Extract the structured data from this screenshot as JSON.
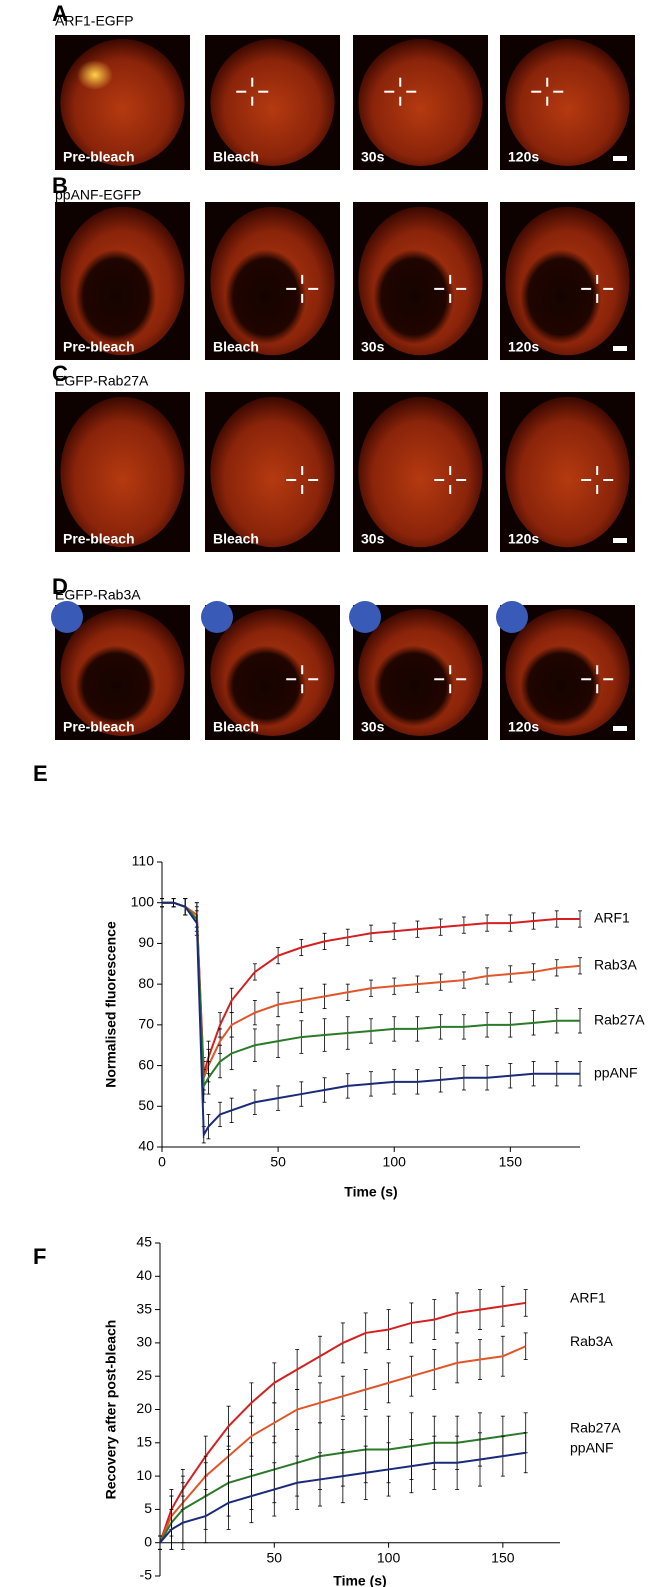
{
  "panels": [
    {
      "letter": "A",
      "title": "ARF1-EGFP",
      "captions": [
        "Pre-bleach",
        "Bleach",
        "30s",
        "120s"
      ]
    },
    {
      "letter": "B",
      "title": "ppANF-EGFP",
      "captions": [
        "Pre-bleach",
        "Bleach",
        "30s",
        "120s"
      ]
    },
    {
      "letter": "C",
      "title": "EGFP-Rab27A",
      "captions": [
        "Pre-bleach",
        "Bleach",
        "30s",
        "120s"
      ]
    },
    {
      "letter": "D",
      "title": "EGFP-Rab3A",
      "captions": [
        "Pre-bleach",
        "Bleach",
        "30s",
        "120s"
      ]
    }
  ],
  "chart_data": [
    {
      "type": "line",
      "panel": "E",
      "xlabel": "Time (s)",
      "ylabel": "Normalised fluorescence",
      "x": [
        0,
        5,
        10,
        15,
        18,
        20,
        25,
        30,
        40,
        50,
        60,
        70,
        80,
        90,
        100,
        110,
        120,
        130,
        140,
        150,
        160,
        170,
        180
      ],
      "xlim": [
        0,
        180
      ],
      "xticks": [
        0,
        50,
        100,
        150
      ],
      "ylim": [
        40,
        110
      ],
      "yticks": [
        40,
        50,
        60,
        70,
        80,
        90,
        100,
        110
      ],
      "series": [
        {
          "name": "ARF1",
          "color": "#d42020",
          "values": [
            100,
            100,
            99,
            97,
            58,
            62,
            70,
            76,
            83,
            87,
            89,
            90.5,
            91.5,
            92.5,
            93,
            93.5,
            94,
            94.5,
            95,
            95,
            95.5,
            96,
            96
          ],
          "errors": [
            1,
            1,
            2,
            3,
            4,
            4,
            3,
            3,
            2,
            2,
            2,
            2,
            2,
            2,
            2,
            2,
            2,
            2,
            2,
            2,
            2,
            2,
            2
          ]
        },
        {
          "name": "Rab3A",
          "color": "#e0562a",
          "values": [
            100,
            100,
            99,
            97,
            57,
            60,
            66,
            70,
            73,
            75,
            76,
            77,
            78,
            79,
            79.5,
            80,
            80.5,
            81,
            82,
            82.5,
            83,
            84,
            84.5
          ],
          "errors": [
            1,
            1,
            2,
            3,
            4,
            4,
            3,
            3,
            3,
            3,
            3,
            3,
            2,
            2,
            2,
            2,
            2,
            2,
            2,
            2,
            2,
            2,
            2
          ]
        },
        {
          "name": "Rab27A",
          "color": "#2a7a2a",
          "values": [
            100,
            100,
            99,
            96,
            55,
            57,
            61,
            63,
            65,
            66,
            67,
            67.5,
            68,
            68.5,
            69,
            69,
            69.5,
            69.5,
            70,
            70,
            70.5,
            71,
            71
          ],
          "errors": [
            1,
            1,
            2,
            3,
            4,
            4,
            4,
            4,
            4,
            4,
            4,
            4,
            4,
            3,
            3,
            3,
            3,
            3,
            3,
            3,
            3,
            3,
            3
          ]
        },
        {
          "name": "ppANF",
          "color": "#1a2a7a",
          "values": [
            100,
            100,
            99,
            95,
            43,
            45,
            48,
            49,
            51,
            52,
            53,
            54,
            55,
            55.5,
            56,
            56,
            56.5,
            57,
            57,
            57.5,
            58,
            58,
            58
          ],
          "errors": [
            1,
            1,
            2,
            3,
            2,
            3,
            3,
            3,
            3,
            3,
            3,
            3,
            3,
            3,
            3,
            3,
            3,
            3,
            3,
            3,
            3,
            3,
            3
          ]
        }
      ]
    },
    {
      "type": "line",
      "panel": "F",
      "xlabel": "Time (s)",
      "ylabel": "Recovery after post-bleach",
      "x": [
        0,
        5,
        10,
        20,
        30,
        40,
        50,
        60,
        70,
        80,
        90,
        100,
        110,
        120,
        130,
        140,
        150,
        160
      ],
      "xlim": [
        0,
        175
      ],
      "xticks": [
        50,
        100,
        150
      ],
      "ylim": [
        -5,
        45
      ],
      "yticks": [
        -5,
        0,
        5,
        10,
        15,
        20,
        25,
        30,
        35,
        40,
        45
      ],
      "series": [
        {
          "name": "ARF1",
          "color": "#d42020",
          "values": [
            0,
            5,
            8,
            13,
            17.5,
            21,
            24,
            26,
            28,
            30,
            31.5,
            32,
            33,
            33.5,
            34.5,
            35,
            35.5,
            36
          ],
          "errors": [
            1,
            3,
            3,
            3,
            3,
            3,
            3,
            3,
            3,
            3,
            3,
            3,
            3,
            3,
            3,
            3,
            3,
            2
          ]
        },
        {
          "name": "Rab3A",
          "color": "#e0562a",
          "values": [
            0,
            4,
            6,
            10,
            13,
            16,
            18,
            20,
            21,
            22,
            23,
            24,
            25,
            26,
            27,
            27.5,
            28,
            29.5
          ],
          "errors": [
            1,
            3,
            3,
            3,
            3,
            3,
            3,
            3,
            3,
            3,
            3,
            3,
            3,
            3,
            3,
            3,
            3,
            2
          ]
        },
        {
          "name": "Rab27A",
          "color": "#2a7a2a",
          "values": [
            0,
            3,
            5,
            7,
            9,
            10,
            11,
            12,
            13,
            13.5,
            14,
            14,
            14.5,
            15,
            15,
            15.5,
            16,
            16.5
          ],
          "errors": [
            1,
            4,
            5,
            5,
            5,
            5,
            5,
            5,
            5,
            5,
            5,
            5,
            5,
            4,
            4,
            4,
            3,
            3
          ]
        },
        {
          "name": "ppANF",
          "color": "#1a2a7a",
          "values": [
            0,
            2,
            3,
            4,
            6,
            7,
            8,
            9,
            9.5,
            10,
            10.5,
            11,
            11.5,
            12,
            12,
            12.5,
            13,
            13.5
          ],
          "errors": [
            1,
            3,
            4,
            4,
            4,
            4,
            4,
            4,
            4,
            4,
            4,
            4,
            4,
            4,
            4,
            4,
            3,
            3
          ]
        }
      ]
    }
  ]
}
